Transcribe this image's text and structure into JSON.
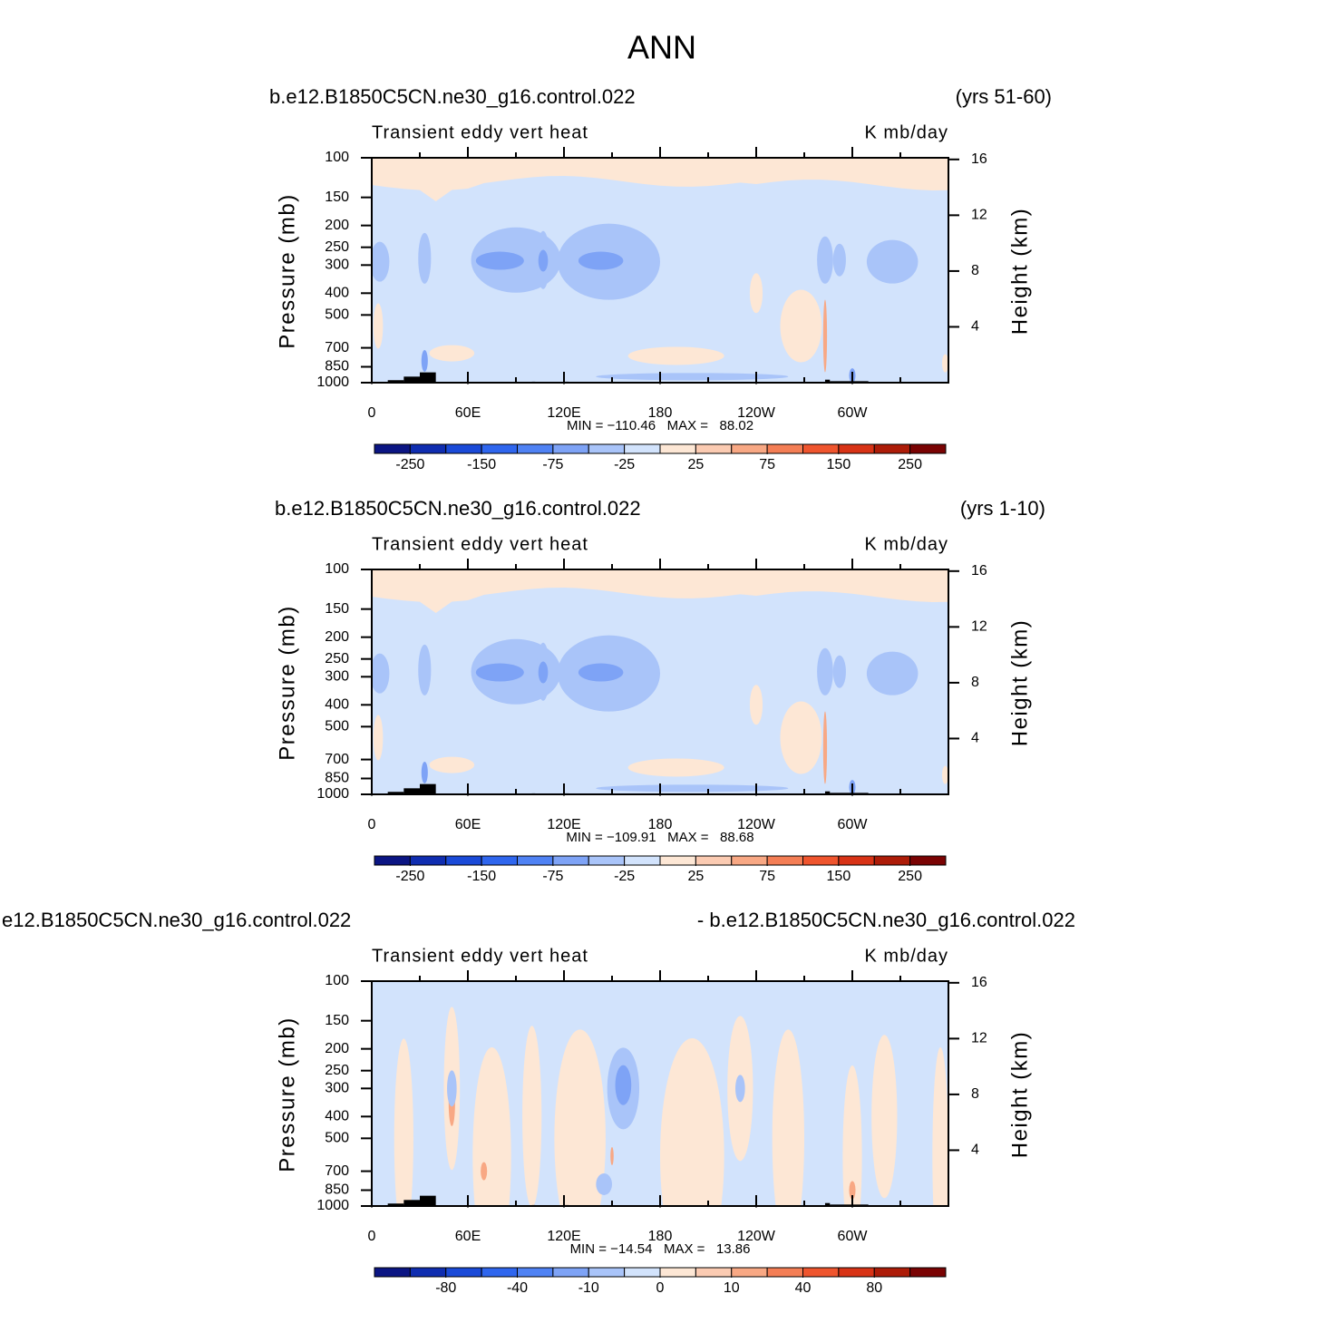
{
  "title": "ANN",
  "axes": {
    "xlim": [
      0,
      360
    ],
    "xticks": [
      0,
      {
        "value": 60,
        "label": "60E"
      },
      {
        "value": 120,
        "label": "120E"
      },
      180,
      {
        "value": 240,
        "label": "120W"
      },
      {
        "value": 300,
        "label": "60W"
      }
    ],
    "ylim": [
      1000,
      100
    ],
    "yticks": [
      100,
      150,
      200,
      250,
      300,
      400,
      500,
      700,
      850,
      1000
    ],
    "y_scale": "log",
    "y2ticks": [
      4,
      8,
      12,
      16
    ],
    "ylabel": "Pressure (mb)",
    "y2label": "Height (km)"
  },
  "colorbar_colors": [
    "#0b1583",
    "#0f2db0",
    "#1a4ad8",
    "#2f66ee",
    "#4f82f4",
    "#7ea3f6",
    "#a9c4f9",
    "#d2e3fc",
    "#fde7d5",
    "#fbcbb2",
    "#f8a884",
    "#f47e55",
    "#ef552e",
    "#d83316",
    "#ad1c08",
    "#7a0303"
  ],
  "panels": [
    {
      "left_title": "b.e12.B1850C5CN.ne30_g16.control.022",
      "right_title": "(yrs 51-60)",
      "subtitle": "Transient eddy vert heat",
      "units": "K mb/day",
      "stats": "MIN = −110.46   MAX =   88.02",
      "levels": [
        -250,
        null,
        -150,
        null,
        -75,
        null,
        -25,
        null,
        25,
        null,
        75,
        null,
        150,
        null,
        250
      ]
    },
    {
      "left_title": "b.e12.B1850C5CN.ne30_g16.control.022",
      "right_title": "(yrs 1-10)",
      "subtitle": "Transient eddy vert heat",
      "units": "K mb/day",
      "stats": "MIN = −109.91   MAX =   88.68",
      "levels": [
        -250,
        null,
        -150,
        null,
        -75,
        null,
        -25,
        null,
        25,
        null,
        75,
        null,
        150,
        null,
        250
      ]
    },
    {
      "left_title": "e12.B1850C5CN.ne30_g16.control.022",
      "right_title": "- b.e12.B1850C5CN.ne30_g16.control.022",
      "subtitle": "Transient eddy vert heat",
      "units": "K mb/day",
      "stats": "MIN = −14.54   MAX =   13.86",
      "levels": [
        null,
        -80,
        null,
        -40,
        null,
        -10,
        null,
        0,
        null,
        10,
        null,
        40,
        null,
        80,
        null
      ]
    }
  ]
}
